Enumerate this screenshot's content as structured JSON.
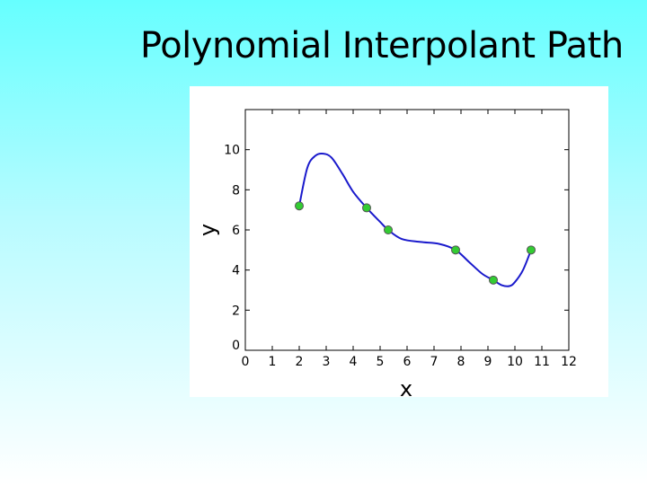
{
  "slide": {
    "title": "Polynomial Interpolant Path"
  },
  "colors": {
    "curve": "#1a1acc",
    "point_fill": "#33cc33",
    "point_stroke": "#555555"
  },
  "chart_data": {
    "type": "line",
    "title": "Polynomial Interpolant Path",
    "xlabel": "x",
    "ylabel": "y",
    "xlim": [
      0,
      12
    ],
    "ylim": [
      0,
      12
    ],
    "xticks": [
      0,
      1,
      2,
      3,
      4,
      5,
      6,
      7,
      8,
      9,
      10,
      11,
      12
    ],
    "yticks": [
      0,
      2,
      4,
      6,
      8,
      10
    ],
    "grid": false,
    "series": [
      {
        "style": "line",
        "x": [
          2.0,
          2.3,
          2.6,
          2.9,
          3.2,
          3.6,
          4.0,
          4.5,
          5.0,
          5.3,
          5.8,
          6.5,
          7.2,
          7.8,
          8.3,
          8.8,
          9.2,
          9.5,
          9.8,
          10.0,
          10.3,
          10.6
        ],
        "y": [
          7.2,
          9.1,
          9.7,
          9.8,
          9.6,
          8.8,
          7.9,
          7.1,
          6.4,
          6.0,
          5.55,
          5.4,
          5.3,
          5.0,
          4.4,
          3.8,
          3.5,
          3.25,
          3.2,
          3.4,
          4.0,
          5.0
        ]
      },
      {
        "style": "markers",
        "x": [
          2.0,
          4.5,
          5.3,
          7.8,
          9.2,
          10.6
        ],
        "y": [
          7.2,
          7.1,
          6.0,
          5.0,
          3.5,
          5.0
        ]
      }
    ]
  }
}
